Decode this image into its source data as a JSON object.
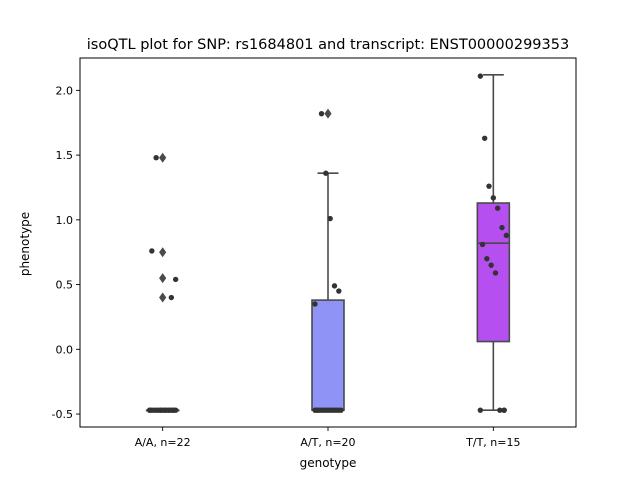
{
  "chart_data": {
    "type": "box",
    "title": "isoQTL plot for SNP: rs1684801 and transcript: ENST00000299353",
    "xlabel": "genotype",
    "ylabel": "phenotype",
    "ylim": [
      -0.6,
      2.25
    ],
    "yticks": [
      "-0.5",
      "0.0",
      "0.5",
      "1.0",
      "1.5",
      "2.0"
    ],
    "grid": false,
    "categories": [
      "A/A, n=22",
      "A/T, n=20",
      "T/T, n=15"
    ],
    "colors": [
      "#6b7fd6",
      "#8f93f6",
      "#b64ff0"
    ],
    "boxes": [
      {
        "category": "A/A, n=22",
        "whisker_low": -0.47,
        "q1": -0.47,
        "median": -0.47,
        "q3": -0.47,
        "whisker_high": -0.47,
        "outliers": [
          1.48,
          0.75,
          0.55,
          0.4
        ]
      },
      {
        "category": "A/T, n=20",
        "whisker_low": -0.47,
        "q1": -0.47,
        "median": -0.47,
        "q3": 0.38,
        "whisker_high": 1.36,
        "outliers": [
          1.82
        ]
      },
      {
        "category": "T/T, n=15",
        "whisker_low": -0.47,
        "q1": 0.06,
        "median": 0.82,
        "q3": 1.13,
        "whisker_high": 2.12,
        "outliers": []
      }
    ],
    "points": [
      [
        -0.47,
        -0.47,
        -0.47,
        -0.47,
        -0.47,
        -0.47,
        -0.47,
        -0.47,
        -0.47,
        -0.47,
        -0.47,
        -0.47,
        -0.47,
        -0.47,
        -0.47,
        -0.47,
        -0.47,
        -0.47,
        1.48,
        0.76,
        0.54,
        0.4
      ],
      [
        -0.47,
        -0.47,
        -0.47,
        -0.47,
        -0.47,
        -0.47,
        -0.47,
        -0.47,
        -0.47,
        -0.47,
        -0.47,
        -0.47,
        -0.47,
        0.35,
        0.45,
        0.49,
        1.01,
        1.36,
        1.82,
        -0.47
      ],
      [
        -0.47,
        -0.47,
        -0.47,
        0.59,
        0.65,
        0.7,
        0.81,
        0.88,
        0.94,
        1.09,
        1.17,
        1.26,
        1.63,
        2.11,
        -0.47
      ]
    ]
  }
}
